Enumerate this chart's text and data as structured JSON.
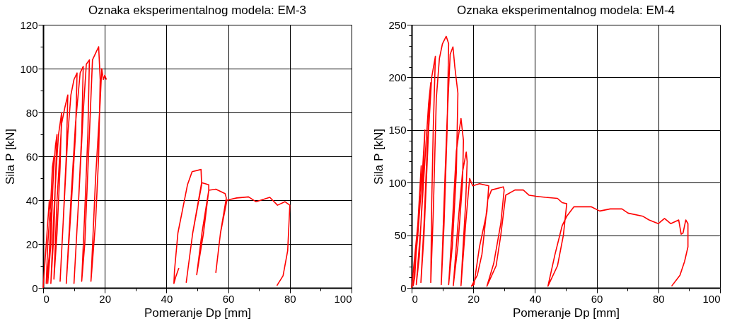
{
  "chart_data": [
    {
      "type": "line",
      "title": "Oznaka eksperimentalnog modela: EM-3",
      "xlabel": "Pomeranje Dp [mm]",
      "ylabel": "Sila P [kN]",
      "xlim": [
        0,
        100
      ],
      "ylim": [
        0,
        120
      ],
      "xticks": [
        0,
        {
          "value": 10,
          "label": null
        },
        20,
        {
          "value": 30,
          "label": null
        },
        40,
        {
          "value": 50,
          "label": null
        },
        60,
        {
          "value": 70,
          "label": null
        },
        80,
        {
          "value": 90,
          "label": null
        },
        100
      ],
      "yticks": [
        0,
        {
          "value": 10,
          "label": null
        },
        20,
        {
          "value": 30,
          "label": null
        },
        40,
        {
          "value": 50,
          "label": null
        },
        60,
        {
          "value": 70,
          "label": null
        },
        80,
        {
          "value": 90,
          "label": null
        },
        100,
        {
          "value": 110,
          "label": null
        },
        120
      ],
      "grid": true,
      "line_style": "solid",
      "series": [
        {
          "color": "#ff0000",
          "x": [
            0,
            0.5,
            1,
            1.5,
            2,
            2.5,
            2,
            1,
            1.5,
            2.5,
            3,
            3.5,
            3,
            2.5,
            1.5,
            2.5,
            3.5,
            4,
            4.5,
            4,
            3.5,
            2.5,
            3.5,
            4.5,
            5,
            6,
            5.5,
            4.5,
            3.5,
            4.5,
            6,
            7,
            8,
            7.5,
            6.5,
            5.5,
            6.5,
            8,
            9,
            10,
            11,
            10.5,
            9,
            7.5,
            9,
            10.5,
            12,
            13,
            12.5,
            11.5,
            10,
            11.5,
            13,
            14,
            15,
            14.5,
            13.5,
            12.5,
            13.5,
            15,
            16,
            17,
            18,
            18.5,
            18,
            17,
            15.5,
            17,
            18.5,
            19,
            19.5,
            20,
            20.5
          ],
          "values": [
            0,
            10,
            20,
            30,
            40,
            30,
            15,
            2,
            20,
            40,
            55,
            60,
            40,
            20,
            2,
            30,
            55,
            65,
            70,
            50,
            25,
            2,
            35,
            60,
            70,
            80,
            55,
            25,
            4,
            40,
            75,
            82,
            88,
            60,
            30,
            3,
            30,
            70,
            88,
            95,
            98,
            70,
            35,
            2,
            40,
            75,
            98,
            101,
            70,
            40,
            2,
            40,
            80,
            102,
            104,
            70,
            35,
            3,
            20,
            70,
            104,
            107,
            110,
            95,
            60,
            30,
            3,
            50,
            85,
            100,
            95,
            97,
            95
          ]
        },
        {
          "color": "#ff0000",
          "x": [
            44,
            43,
            42.4,
            42.6,
            43.7,
            46.8,
            48.3,
            51.2,
            51.4,
            48.5,
            46.4,
            48.5,
            51.4,
            53.7,
            53.7,
            51.5,
            49.8,
            52,
            53.7,
            56,
            59,
            59.4,
            57.5,
            56,
            57.5,
            59.6,
            62.8,
            66.6,
            69,
            73.5,
            76,
            78.4,
            80,
            79.3,
            77.8,
            75.8
          ],
          "values": [
            9,
            5,
            2,
            8,
            25,
            47,
            53,
            54,
            47,
            25,
            2.5,
            25,
            48,
            47,
            44.5,
            25,
            6,
            25,
            44.5,
            45,
            43,
            41,
            25,
            7,
            25,
            40,
            41,
            41.5,
            39.3,
            41.3,
            37.7,
            39.3,
            37.7,
            17,
            5.5,
            1
          ]
        }
      ]
    },
    {
      "type": "line",
      "title": "Oznaka eksperimentalnog modela: EM-4",
      "xlabel": "Pomeranje Dp [mm]",
      "ylabel": "Sila P [kN]",
      "xlim": [
        0,
        100
      ],
      "ylim": [
        0,
        250
      ],
      "xticks": [
        0,
        {
          "value": 10,
          "label": null
        },
        20,
        {
          "value": 30,
          "label": null
        },
        40,
        {
          "value": 50,
          "label": null
        },
        60,
        {
          "value": 70,
          "label": null
        },
        80,
        {
          "value": 90,
          "label": null
        },
        100
      ],
      "yticks": [
        0,
        {
          "value": 10,
          "label": null
        },
        {
          "value": 20,
          "label": null
        },
        {
          "value": 30,
          "label": null
        },
        {
          "value": 40,
          "label": null
        },
        50,
        {
          "value": 60,
          "label": null
        },
        {
          "value": 70,
          "label": null
        },
        {
          "value": 80,
          "label": null
        },
        {
          "value": 90,
          "label": null
        },
        100,
        {
          "value": 110,
          "label": null
        },
        {
          "value": 120,
          "label": null
        },
        {
          "value": 130,
          "label": null
        },
        {
          "value": 140,
          "label": null
        },
        150,
        {
          "value": 160,
          "label": null
        },
        {
          "value": 170,
          "label": null
        },
        {
          "value": 180,
          "label": null
        },
        {
          "value": 190,
          "label": null
        },
        200,
        {
          "value": 210,
          "label": null
        },
        {
          "value": 220,
          "label": null
        },
        {
          "value": 230,
          "label": null
        },
        {
          "value": 240,
          "label": null
        },
        250
      ],
      "grid": true,
      "line_style": "solid",
      "series": [
        {
          "color": "#ff0000",
          "x": [
            0,
            1,
            2,
            3,
            3.1,
            2,
            1,
            0.5,
            2,
            3.5,
            4.3,
            3.5,
            2.5,
            1.5,
            3,
            4.5,
            5.5,
            6.2,
            5,
            4,
            3,
            4,
            5.5,
            6.5,
            7.7,
            7,
            6.5,
            6.2,
            7,
            8,
            9,
            10,
            11.2,
            12,
            11.5,
            10.5,
            9.6,
            10.5,
            11.5,
            12.5,
            13.4,
            14,
            15,
            14.5,
            13.2,
            12,
            13,
            14.5,
            16,
            16.8,
            16.5,
            15,
            13.5,
            15,
            16.5,
            17.7,
            18,
            17.5,
            16.5,
            16,
            17.5,
            18.8,
            19.8,
            22,
            25,
            24.4,
            22,
            20.2,
            19.4,
            21.3,
            22.8,
            24.7,
            25.9,
            29.7,
            30,
            28.9,
            26.6,
            24.4,
            27.4,
            28.9,
            30.5,
            33.5,
            36.2,
            38.1,
            40.4,
            43.4,
            47.3,
            48.8,
            50.3,
            49.2,
            47.3,
            44.2,
            46.5,
            48.8,
            50.3,
            52.6,
            54.9,
            58.3,
            61,
            64.4,
            68.2,
            70.2,
            75,
            77,
            80,
            82,
            84,
            86.6,
            87.4,
            88,
            88.9,
            89.6,
            89.6,
            88.5,
            87,
            84.3
          ],
          "values": [
            0,
            30,
            60,
            90,
            116,
            60,
            10,
            2,
            50,
            110,
            150,
            90,
            30,
            3,
            60,
            130,
            175,
            195,
            130,
            60,
            5,
            50,
            150,
            200,
            220,
            150,
            80,
            5,
            70,
            180,
            218,
            232,
            239,
            232,
            150,
            60,
            3,
            80,
            160,
            222,
            229,
            210,
            185,
            110,
            40,
            3,
            50,
            130,
            161,
            140,
            100,
            40,
            2,
            60,
            110,
            129,
            120,
            80,
            30,
            2,
            60,
            104,
            97,
            99,
            97,
            72,
            39,
            3,
            1.6,
            12,
            32,
            84,
            93,
            96,
            93,
            61,
            23,
            1.6,
            21,
            50,
            88,
            93,
            93,
            88,
            87,
            86,
            85,
            81,
            80,
            50,
            21,
            1.6,
            32,
            59,
            68,
            77,
            77,
            77,
            73,
            75,
            75,
            71,
            68,
            64.5,
            61,
            66,
            61,
            64.5,
            51,
            52,
            64.5,
            61,
            39,
            25,
            12,
            1.6
          ]
        }
      ]
    }
  ]
}
